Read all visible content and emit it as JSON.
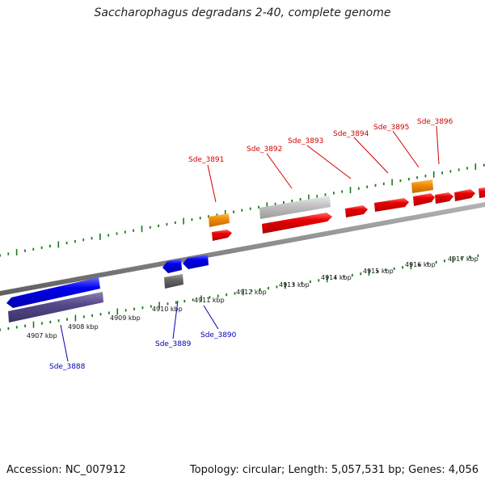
{
  "title": "Saccharophagus degradans 2-40, complete genome",
  "footer": {
    "accession": "Accession: NC_007912",
    "summary": "Topology: circular; Length: 5,057,531 bp; Genes: 4,056"
  },
  "colors": {
    "forward_gene": "#e00000",
    "forward_label": "#d00000",
    "reverse_gene": "#0000e0",
    "reverse_label": "#0000b0",
    "rna_orange": "#f08c00",
    "grey_gene": "#c0c0c0",
    "dark_gene": "#5a4f8a",
    "backbone": "#888888",
    "tick": "#1a7a1a"
  },
  "scale": {
    "unit": "kbp",
    "labels": [
      "4907 kbp",
      "4908 kbp",
      "4909 kbp",
      "4910 kbp",
      "4911 kbp",
      "4912 kbp",
      "4913 kbp",
      "4914 kbp",
      "4915 kbp",
      "4916 kbp",
      "4917 kbp"
    ]
  },
  "genes": {
    "forward": [
      {
        "label": "Sde_3891",
        "color": "forward"
      },
      {
        "label": "Sde_3892",
        "color": "forward"
      },
      {
        "label": "Sde_3893",
        "color": "forward"
      },
      {
        "label": "Sde_3894",
        "color": "forward"
      },
      {
        "label": "Sde_3895",
        "color": "forward"
      },
      {
        "label": "Sde_3896",
        "color": "forward"
      }
    ],
    "reverse": [
      {
        "label": "Sde_3888",
        "color": "reverse"
      },
      {
        "label": "Sde_3889",
        "color": "reverse"
      },
      {
        "label": "Sde_3890",
        "color": "reverse"
      }
    ]
  }
}
